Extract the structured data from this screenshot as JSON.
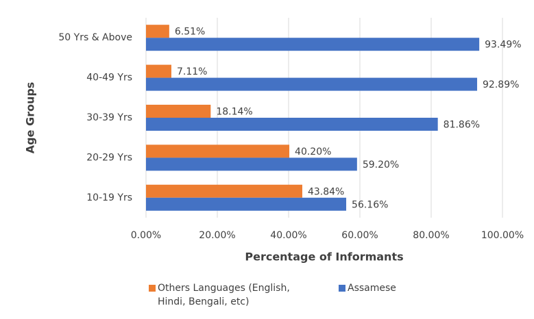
{
  "chart_data": {
    "type": "hbar",
    "categories": [
      "10-19 Yrs",
      "20-29 Yrs",
      "30-39 Yrs",
      "40-49 Yrs",
      "50 Yrs & Above"
    ],
    "series": [
      {
        "name": "Others Languages (English, Hindi, Bengali, etc)",
        "color": "#ed7d31",
        "values": [
          43.84,
          40.2,
          18.14,
          7.11,
          6.51
        ],
        "value_labels": [
          "43.84%",
          "40.20%",
          "18.14%",
          "7.11%",
          "6.51%"
        ]
      },
      {
        "name": "Assamese",
        "color": "#4472c4",
        "values": [
          56.16,
          59.2,
          81.86,
          92.89,
          93.49
        ],
        "value_labels": [
          "56.16%",
          "59.20%",
          "81.86%",
          "92.89%",
          "93.49%"
        ]
      }
    ],
    "xlabel": "Percentage of Informants",
    "ylabel": "Age Groups",
    "xlim": [
      0,
      100
    ],
    "xticks": [
      {
        "value": 0,
        "label": "0.00%"
      },
      {
        "value": 20,
        "label": "20.00%"
      },
      {
        "value": 40,
        "label": "40.00%"
      },
      {
        "value": 60,
        "label": "60.00%"
      },
      {
        "value": 80,
        "label": "80.00%"
      },
      {
        "value": 100,
        "label": "100.00%"
      }
    ],
    "grid": true,
    "legend": "bottom"
  }
}
